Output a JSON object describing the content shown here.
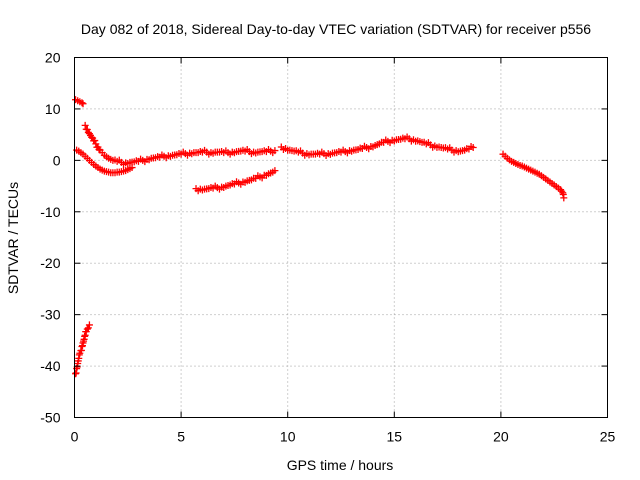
{
  "chart_data": {
    "type": "scatter",
    "title": "Day 082 of 2018, Sidereal Day-to-day VTEC variation (SDTVAR) for receiver p556",
    "xlabel": "GPS time / hours",
    "ylabel": "SDTVAR / TECUs",
    "xlim": [
      0,
      25
    ],
    "ylim": [
      -50,
      20
    ],
    "xticks": [
      "0",
      "5",
      "10",
      "15",
      "20",
      "25"
    ],
    "yticks": [
      "20",
      "10",
      "0",
      "-10",
      "-20",
      "-30",
      "-40",
      "-50"
    ],
    "grid": true,
    "marker": "plus",
    "color": "#ff0000",
    "series": [
      {
        "name": "s1",
        "points": [
          [
            0.05,
            11.8
          ],
          [
            0.15,
            11.6
          ],
          [
            0.25,
            11.4
          ],
          [
            0.35,
            11.2
          ],
          [
            0.4,
            11.0
          ]
        ]
      },
      {
        "name": "s2",
        "points": [
          [
            0.05,
            -41.5
          ],
          [
            0.1,
            -40.5
          ],
          [
            0.15,
            -39.5
          ],
          [
            0.2,
            -38.5
          ],
          [
            0.25,
            -37.5
          ],
          [
            0.3,
            -37.0
          ],
          [
            0.35,
            -36.2
          ],
          [
            0.4,
            -35.5
          ],
          [
            0.45,
            -34.8
          ],
          [
            0.5,
            -34.0
          ],
          [
            0.55,
            -33.3
          ],
          [
            0.6,
            -32.8
          ],
          [
            0.7,
            -32.0
          ]
        ]
      },
      {
        "name": "s3",
        "points": [
          [
            0.1,
            2.0
          ],
          [
            0.2,
            1.8
          ],
          [
            0.3,
            1.5
          ],
          [
            0.4,
            1.2
          ],
          [
            0.5,
            0.8
          ],
          [
            0.6,
            0.4
          ],
          [
            0.7,
            0.0
          ],
          [
            0.8,
            -0.4
          ],
          [
            0.9,
            -0.8
          ],
          [
            1.0,
            -1.1
          ],
          [
            1.1,
            -1.4
          ],
          [
            1.2,
            -1.7
          ],
          [
            1.3,
            -1.9
          ],
          [
            1.4,
            -2.1
          ],
          [
            1.5,
            -2.2
          ],
          [
            1.6,
            -2.3
          ],
          [
            1.7,
            -2.4
          ],
          [
            1.8,
            -2.4
          ],
          [
            1.9,
            -2.4
          ],
          [
            2.0,
            -2.3
          ],
          [
            2.1,
            -2.3
          ],
          [
            2.2,
            -2.2
          ],
          [
            2.3,
            -2.1
          ],
          [
            2.4,
            -2.0
          ],
          [
            2.5,
            -1.8
          ],
          [
            2.6,
            -1.6
          ],
          [
            2.7,
            -1.4
          ]
        ]
      },
      {
        "name": "s4",
        "points": [
          [
            0.5,
            6.8
          ],
          [
            0.6,
            6.0
          ],
          [
            0.7,
            5.2
          ],
          [
            0.8,
            4.5
          ],
          [
            0.9,
            3.8
          ],
          [
            1.0,
            3.2
          ],
          [
            1.1,
            2.6
          ],
          [
            1.2,
            2.0
          ],
          [
            1.3,
            1.5
          ],
          [
            1.4,
            1.0
          ],
          [
            1.5,
            0.7
          ],
          [
            1.6,
            0.4
          ],
          [
            1.7,
            0.2
          ],
          [
            1.8,
            0.0
          ],
          [
            2.0,
            -0.2
          ],
          [
            2.2,
            -0.4
          ],
          [
            2.4,
            -0.5
          ],
          [
            2.6,
            -0.4
          ],
          [
            2.8,
            -0.3
          ],
          [
            3.0,
            -0.2
          ],
          [
            3.2,
            0.0
          ],
          [
            3.4,
            0.2
          ],
          [
            3.6,
            0.4
          ],
          [
            3.8,
            0.5
          ],
          [
            4.0,
            0.6
          ],
          [
            4.2,
            0.8
          ],
          [
            4.4,
            0.9
          ],
          [
            4.6,
            1.0
          ],
          [
            4.8,
            1.1
          ],
          [
            5.0,
            1.2
          ],
          [
            5.2,
            1.3
          ],
          [
            5.4,
            1.4
          ],
          [
            5.6,
            1.5
          ],
          [
            5.8,
            1.5
          ],
          [
            6.0,
            1.6
          ],
          [
            6.2,
            1.6
          ],
          [
            6.4,
            1.5
          ],
          [
            6.6,
            1.6
          ],
          [
            6.8,
            1.6
          ],
          [
            7.0,
            1.5
          ],
          [
            7.2,
            1.5
          ],
          [
            7.4,
            1.6
          ],
          [
            7.6,
            1.7
          ],
          [
            7.8,
            1.8
          ],
          [
            8.0,
            1.8
          ],
          [
            8.2,
            1.7
          ],
          [
            8.4,
            1.6
          ],
          [
            8.6,
            1.6
          ],
          [
            8.8,
            1.7
          ],
          [
            9.0,
            1.7
          ],
          [
            9.2,
            1.8
          ],
          [
            9.4,
            1.9
          ]
        ]
      },
      {
        "name": "s5",
        "points": [
          [
            5.7,
            -5.5
          ],
          [
            5.9,
            -5.6
          ],
          [
            6.1,
            -5.6
          ],
          [
            6.3,
            -5.5
          ],
          [
            6.5,
            -5.4
          ],
          [
            6.7,
            -5.3
          ],
          [
            6.9,
            -5.2
          ],
          [
            7.1,
            -5.0
          ],
          [
            7.3,
            -4.8
          ],
          [
            7.5,
            -4.6
          ],
          [
            7.7,
            -4.4
          ],
          [
            7.9,
            -4.2
          ],
          [
            8.1,
            -4.0
          ],
          [
            8.3,
            -3.8
          ],
          [
            8.5,
            -3.5
          ],
          [
            8.7,
            -3.2
          ],
          [
            8.9,
            -2.9
          ],
          [
            9.1,
            -2.6
          ],
          [
            9.3,
            -2.3
          ],
          [
            9.4,
            -2.0
          ]
        ]
      },
      {
        "name": "s6",
        "points": [
          [
            9.7,
            2.6
          ],
          [
            9.9,
            2.3
          ],
          [
            10.1,
            2.0
          ],
          [
            10.3,
            1.8
          ],
          [
            10.5,
            1.6
          ],
          [
            10.7,
            1.4
          ],
          [
            10.9,
            1.3
          ],
          [
            11.1,
            1.2
          ],
          [
            11.3,
            1.2
          ],
          [
            11.5,
            1.2
          ],
          [
            11.7,
            1.3
          ],
          [
            11.9,
            1.3
          ],
          [
            12.1,
            1.4
          ],
          [
            12.3,
            1.5
          ],
          [
            12.5,
            1.6
          ],
          [
            12.7,
            1.7
          ],
          [
            12.9,
            1.9
          ],
          [
            13.1,
            2.0
          ],
          [
            13.3,
            2.1
          ],
          [
            13.5,
            2.3
          ],
          [
            13.7,
            2.5
          ],
          [
            13.9,
            2.7
          ],
          [
            14.1,
            2.9
          ],
          [
            14.3,
            3.2
          ],
          [
            14.5,
            3.5
          ],
          [
            14.7,
            3.7
          ],
          [
            14.9,
            3.9
          ],
          [
            15.1,
            4.0
          ],
          [
            15.3,
            4.1
          ],
          [
            15.5,
            4.2
          ],
          [
            15.7,
            4.2
          ],
          [
            15.9,
            4.0
          ],
          [
            16.1,
            3.8
          ],
          [
            16.3,
            3.5
          ],
          [
            16.5,
            3.2
          ],
          [
            16.7,
            3.0
          ],
          [
            16.9,
            2.8
          ],
          [
            17.1,
            2.6
          ],
          [
            17.3,
            2.4
          ],
          [
            17.5,
            2.2
          ],
          [
            17.7,
            2.0
          ],
          [
            17.9,
            1.9
          ],
          [
            18.1,
            1.8
          ],
          [
            18.3,
            2.0
          ],
          [
            18.5,
            2.2
          ],
          [
            18.7,
            2.5
          ]
        ]
      },
      {
        "name": "s7",
        "points": [
          [
            20.1,
            1.2
          ],
          [
            20.2,
            0.8
          ],
          [
            20.3,
            0.4
          ],
          [
            20.4,
            0.1
          ],
          [
            20.5,
            -0.2
          ],
          [
            20.6,
            -0.4
          ],
          [
            20.7,
            -0.6
          ],
          [
            20.8,
            -0.8
          ],
          [
            20.9,
            -1.0
          ],
          [
            21.0,
            -1.1
          ],
          [
            21.1,
            -1.3
          ],
          [
            21.2,
            -1.5
          ],
          [
            21.3,
            -1.7
          ],
          [
            21.4,
            -1.9
          ],
          [
            21.5,
            -2.1
          ],
          [
            21.6,
            -2.3
          ],
          [
            21.7,
            -2.5
          ],
          [
            21.8,
            -2.7
          ],
          [
            21.9,
            -3.0
          ],
          [
            22.0,
            -3.3
          ],
          [
            22.1,
            -3.6
          ],
          [
            22.2,
            -3.9
          ],
          [
            22.3,
            -4.2
          ],
          [
            22.4,
            -4.5
          ],
          [
            22.5,
            -4.8
          ],
          [
            22.6,
            -5.1
          ],
          [
            22.7,
            -5.4
          ],
          [
            22.8,
            -5.7
          ],
          [
            22.9,
            -6.3
          ],
          [
            22.95,
            -7.3
          ]
        ]
      }
    ]
  }
}
